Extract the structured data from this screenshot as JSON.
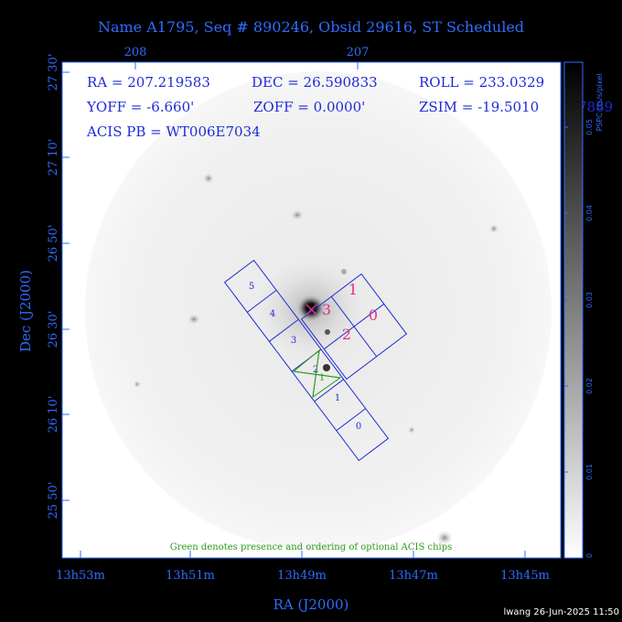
{
  "title": "Name A1795, Seq # 890246, Obsid 29616, ST Scheduled",
  "top_ticks": [
    "208",
    "207"
  ],
  "info": {
    "ra": "RA = 207.219583",
    "dec": "DEC = 26.590833",
    "roll": "ROLL = 233.0329",
    "yoff": "YOFF =  -6.660'",
    "zoff": "ZOFF =  0.0000'",
    "zsim": "ZSIM = -19.5010",
    "zsim_tail": "7889",
    "acis": "ACIS PB = WT006E7034"
  },
  "y_ticks": [
    "27 30'",
    "27 10'",
    "26 50'",
    "26 30'",
    "26 10'",
    "25 50'"
  ],
  "x_ticks": [
    "13h53m",
    "13h51m",
    "13h49m",
    "13h47m",
    "13h45m"
  ],
  "x_label": "RA (J2000)",
  "y_label": "Dec (J2000)",
  "colorbar": {
    "label": "PSPC cts/s/pixel",
    "ticks": [
      "0",
      "0.01",
      "0.02",
      "0.03",
      "0.04",
      "0.05"
    ]
  },
  "chips_i": [
    "0",
    "1",
    "2",
    "3"
  ],
  "chips_s": [
    "0",
    "1",
    "2",
    "3",
    "4",
    "5"
  ],
  "optional_chip": "1",
  "note": "Green denotes presence and ordering of optional ACIS chips",
  "footer": "lwang 26-Jun-2025 11:50"
}
